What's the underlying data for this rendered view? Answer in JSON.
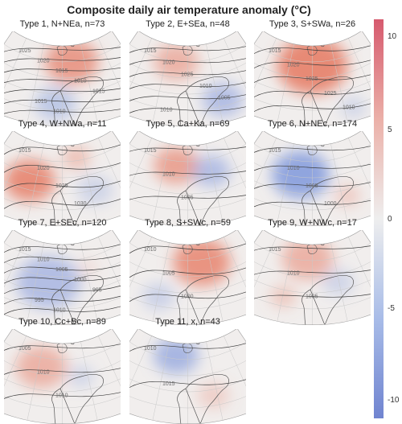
{
  "title": "Composite daily air temperature anomaly (°C)",
  "panels": [
    {
      "label": "Type 1, N+NEa, n=73",
      "warm": [
        [
          0.58,
          0.32,
          0.42,
          0.78
        ]
      ],
      "cold": [
        [
          0.44,
          0.76,
          0.32,
          0.45
        ]
      ],
      "isobars": [
        "1025",
        "1020",
        "1015",
        "1010",
        "1015",
        "1015",
        "1010"
      ]
    },
    {
      "label": "Type 2, E+SEa, n=48",
      "warm": [
        [
          0.4,
          0.32,
          0.35,
          0.55
        ]
      ],
      "cold": [
        [
          0.8,
          0.72,
          0.32,
          0.55
        ]
      ],
      "isobars": [
        "1015",
        "1020",
        "1025",
        "1010",
        "1005",
        "1010"
      ]
    },
    {
      "label": "Type 3, S+SWa, n=26",
      "warm": [
        [
          0.5,
          0.36,
          0.55,
          0.95
        ]
      ],
      "cold": [
        [
          0.85,
          0.8,
          0.2,
          0.3
        ]
      ],
      "isobars": [
        "1015",
        "1020",
        "1025",
        "1025",
        "1010"
      ]
    },
    {
      "label": "Type 4, W+NWa, n=11",
      "warm": [
        [
          0.22,
          0.52,
          0.4,
          0.9
        ],
        [
          0.62,
          0.28,
          0.22,
          0.45
        ]
      ],
      "cold": [
        [
          0.78,
          0.62,
          0.28,
          0.3
        ]
      ],
      "isobars": [
        "1015",
        "1020",
        "1025",
        "1030"
      ]
    },
    {
      "label": "Type 5, Ca+Ka, n=69",
      "warm": [
        [
          0.4,
          0.36,
          0.35,
          0.7
        ]
      ],
      "cold": [
        [
          0.7,
          0.42,
          0.3,
          0.55
        ]
      ],
      "isobars": [
        "1015",
        "1010",
        "1005"
      ]
    },
    {
      "label": "Type 6, N+NEc, n=174",
      "warm": [
        [
          0.8,
          0.68,
          0.2,
          0.35
        ]
      ],
      "cold": [
        [
          0.4,
          0.46,
          0.45,
          0.85
        ]
      ],
      "isobars": [
        "1015",
        "1010",
        "1005",
        "1000"
      ]
    },
    {
      "label": "Type 7, E+SEc, n=120",
      "warm": [
        [
          0.72,
          0.4,
          0.15,
          0.2
        ]
      ],
      "cold": [
        [
          0.38,
          0.55,
          0.5,
          0.55
        ]
      ],
      "isobars": [
        "1015",
        "1010",
        "1005",
        "1000",
        "995",
        "995",
        "1010"
      ]
    },
    {
      "label": "Type 8, S+SWc, n=59",
      "warm": [
        [
          0.62,
          0.34,
          0.45,
          0.85
        ]
      ],
      "cold": [
        [
          0.25,
          0.7,
          0.25,
          0.35
        ]
      ],
      "isobars": [
        "1010",
        "1005",
        "1000"
      ]
    },
    {
      "label": "Type 9, W+NWc, n=17",
      "warm": [
        [
          0.46,
          0.3,
          0.4,
          0.55
        ],
        [
          0.25,
          0.7,
          0.2,
          0.4
        ]
      ],
      "cold": [
        [
          0.72,
          0.55,
          0.25,
          0.3
        ]
      ],
      "isobars": [
        "1015",
        "1010",
        "1005"
      ]
    },
    {
      "label": "Type 10, Cc+Bc, n=89",
      "warm": [
        [
          0.32,
          0.4,
          0.4,
          0.55
        ]
      ],
      "cold": [
        [
          0.66,
          0.5,
          0.2,
          0.3
        ]
      ],
      "isobars": [
        "1005",
        "1010",
        "1010"
      ]
    },
    {
      "label": "Type 11, x, n=43",
      "warm": [
        [
          0.72,
          0.7,
          0.25,
          0.3
        ]
      ],
      "cold": [
        [
          0.4,
          0.28,
          0.35,
          0.65
        ]
      ],
      "isobars": [
        "1010",
        "1015"
      ]
    }
  ],
  "colorbar": {
    "ticks": [
      "10",
      "5",
      "0",
      "-5",
      "-10"
    ],
    "stops": [
      "#d65a6e",
      "#ebb0a8",
      "#eeeeee",
      "#a8bce8",
      "#7084d0"
    ]
  }
}
